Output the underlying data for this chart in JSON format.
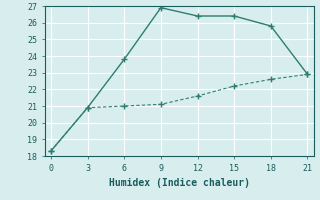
{
  "xlabel": "Humidex (Indice chaleur)",
  "line1_x": [
    0,
    3,
    6,
    9,
    12,
    15,
    18,
    21
  ],
  "line1_y": [
    18.3,
    20.9,
    23.8,
    26.9,
    26.4,
    26.4,
    25.8,
    22.9
  ],
  "line2_x": [
    0,
    3,
    6,
    9,
    12,
    15,
    18,
    21
  ],
  "line2_y": [
    18.3,
    20.9,
    21.0,
    21.1,
    21.6,
    22.2,
    22.6,
    22.9
  ],
  "line_color": "#2e7d6e",
  "bg_color": "#d8eeee",
  "grid_color": "#ffffff",
  "xlim": [
    -0.5,
    21.5
  ],
  "ylim": [
    18,
    27
  ],
  "xticks": [
    0,
    3,
    6,
    9,
    12,
    15,
    18,
    21
  ],
  "yticks": [
    18,
    19,
    20,
    21,
    22,
    23,
    24,
    25,
    26,
    27
  ],
  "tick_fontsize": 6,
  "xlabel_fontsize": 7
}
